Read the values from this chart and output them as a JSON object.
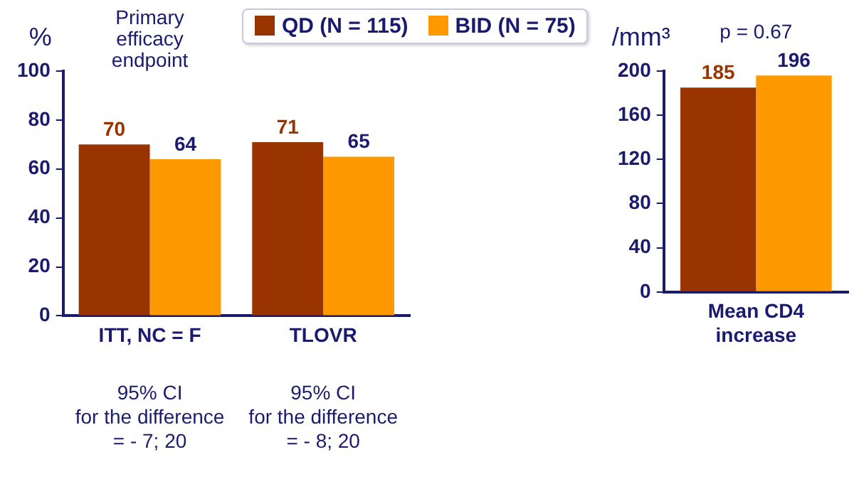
{
  "chart_data": [
    {
      "type": "bar",
      "ylabel": "%",
      "categories": [
        "ITT, NC = F",
        "TLOVR"
      ],
      "series": [
        {
          "name": "QD (N = 115)",
          "color": "#993300",
          "values": [
            70,
            71
          ]
        },
        {
          "name": "BID (N = 75)",
          "color": "#ff9900",
          "values": [
            64,
            65
          ]
        }
      ],
      "ylim": [
        0,
        100
      ],
      "yticks": [
        0,
        20,
        40,
        60,
        80,
        100
      ],
      "grid": false,
      "legend": "top",
      "data_labels": true,
      "annotations": [
        "Primary\nefficacy\nendpoint",
        "95% CI\nfor the difference\n= - 7; 20",
        "95% CI\nfor the difference\n= - 8; 20"
      ]
    },
    {
      "type": "bar",
      "ylabel": "/mm³",
      "categories": [
        "Mean CD4\nincrease"
      ],
      "series": [
        {
          "color": "#993300",
          "values": [
            185
          ]
        },
        {
          "color": "#ff9900",
          "values": [
            196
          ]
        }
      ],
      "ylim": [
        0,
        200
      ],
      "yticks": [
        0,
        40,
        80,
        120,
        160,
        200
      ],
      "grid": false,
      "data_labels": true,
      "annotations": [
        "p = 0.67"
      ]
    }
  ]
}
